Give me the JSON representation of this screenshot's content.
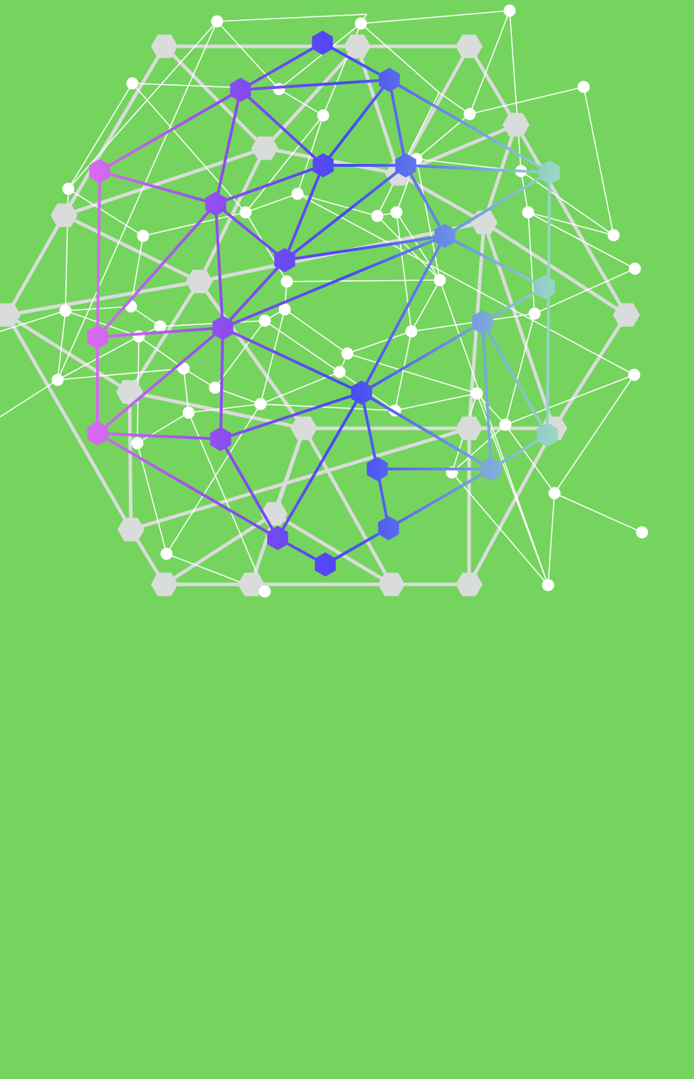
{
  "colors": {
    "background": "#74D45D",
    "grey_net": "#DADBDB",
    "white_net": "#FFFFFF",
    "gradient_pink": "#D86AF0",
    "gradient_violet": "#8E4CF0",
    "gradient_blue": "#4747F5",
    "gradient_sky": "#6E90E6",
    "gradient_teal": "#9AD7C4"
  },
  "illustration": "network-mesh"
}
